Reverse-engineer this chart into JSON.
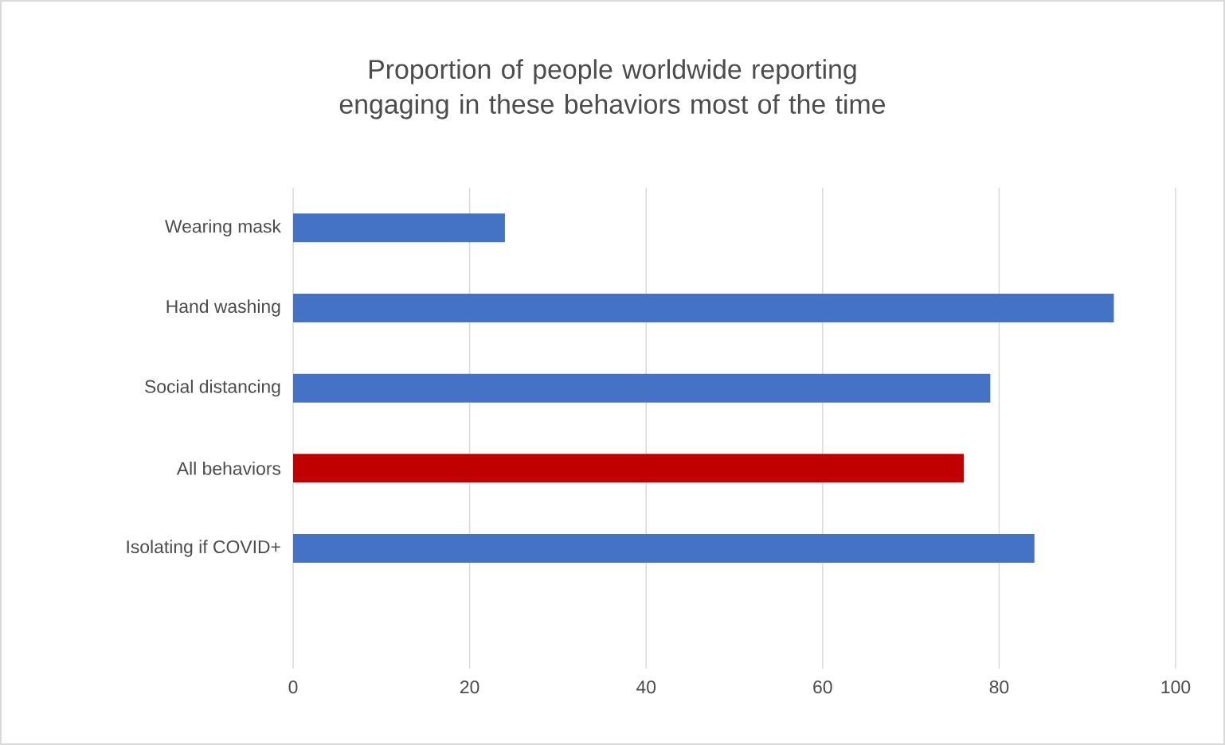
{
  "chart_data": {
    "type": "bar",
    "orientation": "horizontal",
    "title": "Proportion of people worldwide reporting engaging in these behaviors most of the time",
    "categories": [
      "Wearing mask",
      "Hand washing",
      "Social distancing",
      "All behaviors",
      "Isolating if COVID+",
      null
    ],
    "values": [
      24,
      93,
      79,
      76,
      84,
      null
    ],
    "colors": [
      "#4472c4",
      "#4472c4",
      "#4472c4",
      "#c00000",
      "#4472c4",
      "#4472c4"
    ],
    "xlim": [
      0,
      100
    ],
    "xticks": [
      0,
      20,
      40,
      60,
      80,
      100
    ],
    "grid": "x"
  }
}
